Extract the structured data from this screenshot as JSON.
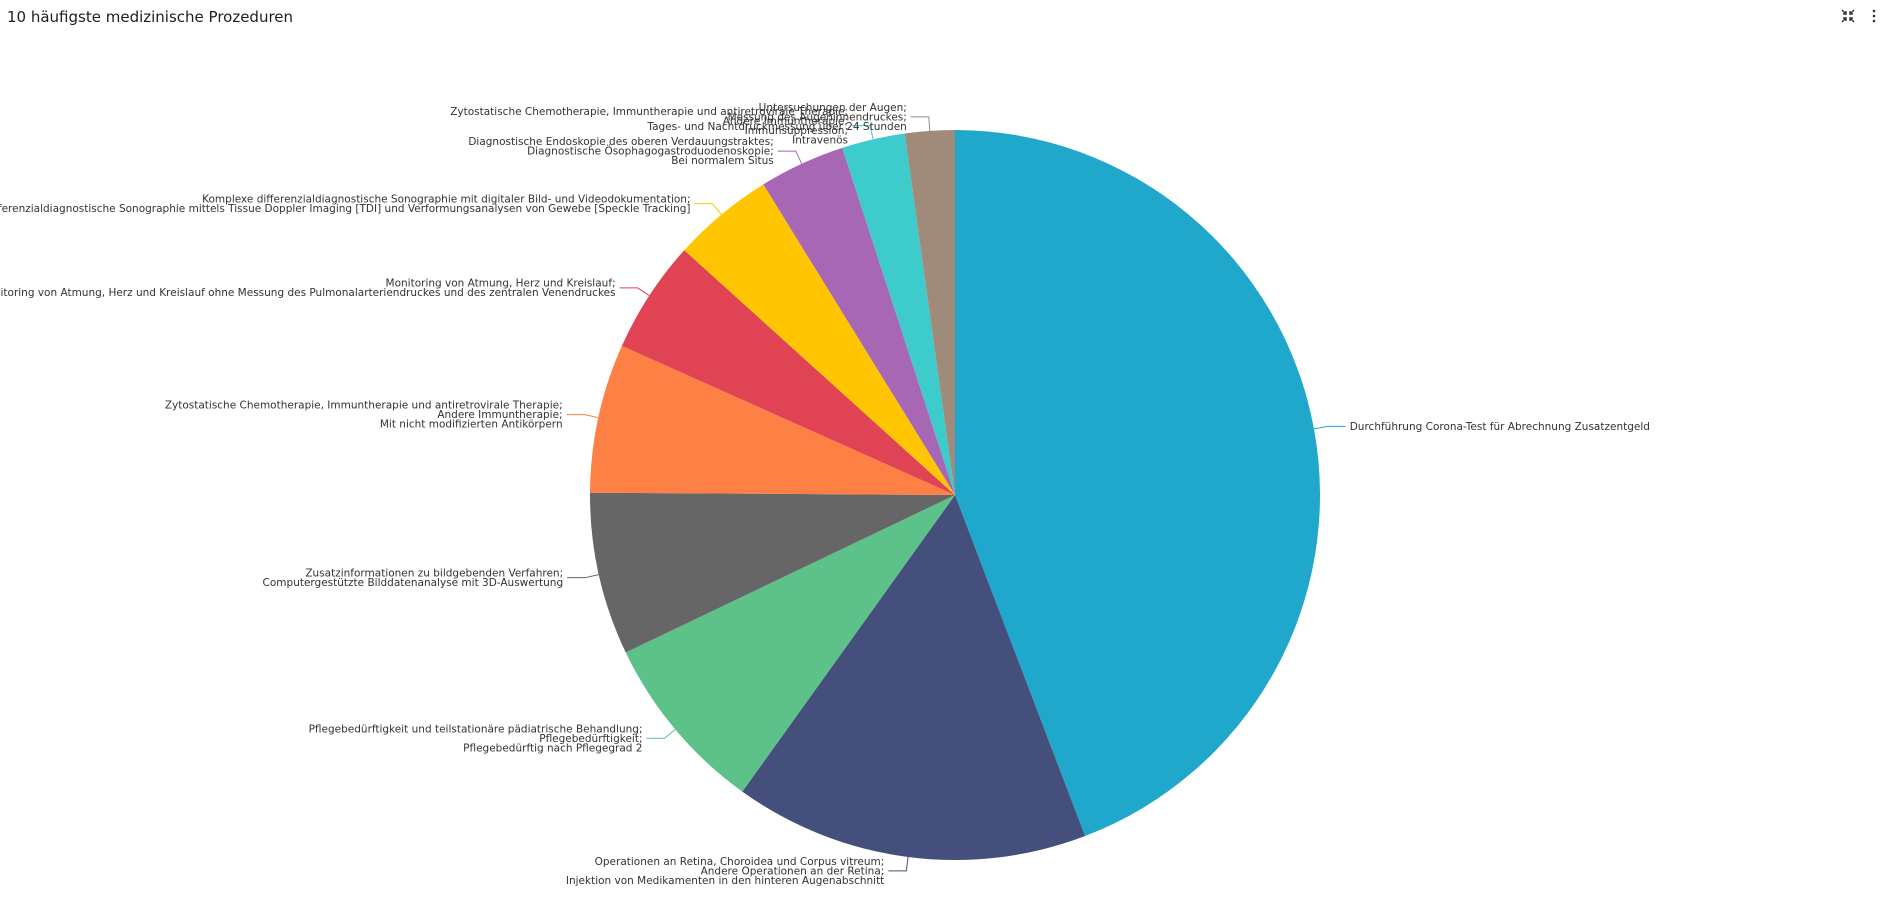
{
  "panel": {
    "title": "10 häufigste medizinische Prozeduren",
    "icons": [
      "collapse-icon",
      "more-vertical-icon"
    ]
  },
  "chart_data": {
    "type": "pie",
    "title": "10 häufigste medizinische Prozeduren",
    "start": "12 o'clock",
    "direction": "clockwise",
    "slices": [
      {
        "label_lines": [
          "Durchführung Corona-Test für Abrechnung Zusatzentgeld"
        ],
        "value": 44.2,
        "color": "#20a8cc"
      },
      {
        "label_lines": [
          "Operationen an Retina, Choroidea und Corpus vitreum;",
          "Andere Operationen an der Retina;",
          "Injektion von Medikamenten in den hinteren Augenabschnitt"
        ],
        "value": 15.7,
        "color": "#444f7c"
      },
      {
        "label_lines": [
          "Pflegebedürftigkeit und teilstationäre pädiatrische Behandlung;",
          "Pflegebedürftigkeit;",
          "Pflegebedürftig nach Pflegegrad 2"
        ],
        "value": 8.0,
        "color": "#5cc28a"
      },
      {
        "label_lines": [
          "Zusatzinformationen zu bildgebenden Verfahren;",
          "Computergestützte Bilddatenanalyse mit 3D-Auswertung"
        ],
        "value": 7.2,
        "color": "#666666"
      },
      {
        "label_lines": [
          "Zytostatische Chemotherapie, Immuntherapie und antiretrovirale Therapie;",
          "Andere Immuntherapie;",
          "Mit nicht modifizierten Antikörpern"
        ],
        "value": 6.6,
        "color": "#fe8044"
      },
      {
        "label_lines": [
          "Monitoring von Atmung, Herz und Kreislauf;",
          "Monitoring von Atmung, Herz und Kreislauf ohne Messung des Pulmonalarteriendruckes und des zentralen Venendruckes"
        ],
        "value": 5.0,
        "color": "#e04454"
      },
      {
        "label_lines": [
          "Komplexe differenzialdiagnostische Sonographie mit digitaler Bild- und Videodokumentation;",
          "Komplexe differenzialdiagnostische Sonographie mittels Tissue Doppler Imaging [TDI] und Verformungsanalysen von Gewebe [Speckle Tracking]"
        ],
        "value": 4.5,
        "color": "#fec500"
      },
      {
        "label_lines": [
          "Diagnostische Endoskopie des oberen Verdauungstraktes;",
          "Diagnostische Ösophagogastroduodenoskopie;",
          "Bei normalem Situs"
        ],
        "value": 3.8,
        "color": "#a767b5"
      },
      {
        "label_lines": [
          "Zytostatische Chemotherapie, Immuntherapie und antiretrovirale Therapie;",
          "Andere Immuntherapie;",
          "Immunsuppression;",
          "Intravenös"
        ],
        "value": 2.8,
        "color": "#3dcbcc"
      },
      {
        "label_lines": [
          "Untersuchungen der Augen;",
          "Messung des Augeninnendruckes;",
          "Tages- und Nachtdruckmessung über 24 Stunden"
        ],
        "value": 2.2,
        "color": "#a08a79"
      }
    ]
  }
}
